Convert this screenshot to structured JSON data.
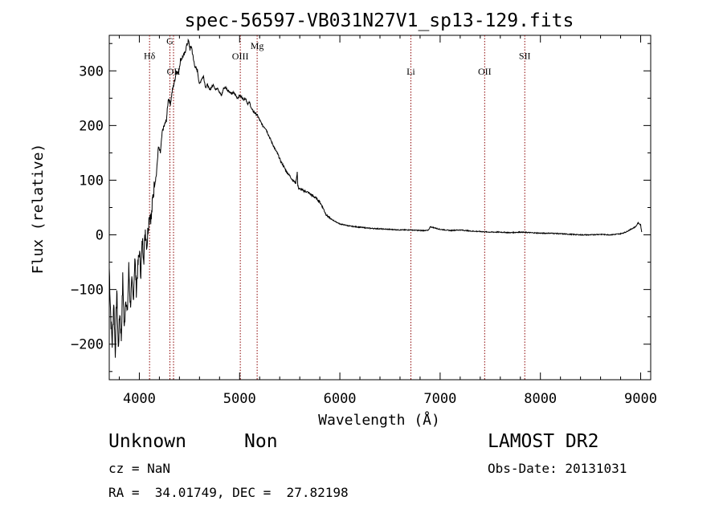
{
  "chart_data": {
    "type": "line",
    "title": "spec-56597-VB031N27V1_sp13-129.fits",
    "xlabel": "Wavelength (Å)",
    "ylabel": "Flux (relative)",
    "xlim": [
      3700,
      9100
    ],
    "ylim": [
      -265,
      365
    ],
    "xticks": [
      4000,
      5000,
      6000,
      7000,
      8000,
      9000
    ],
    "yticks": [
      -200,
      -100,
      0,
      100,
      200,
      300
    ],
    "grid": false,
    "line_color": "#000000",
    "marker_color": "#8b0000",
    "lines": [
      {
        "label": "Hδ",
        "wavelength": 4102,
        "label_flux": 322
      },
      {
        "label": "G",
        "wavelength": 4305,
        "label_flux": 349
      },
      {
        "label": "OII",
        "wavelength": 4341,
        "label_flux": 293
      },
      {
        "label": "OIII",
        "wavelength": 5007,
        "label_flux": 321
      },
      {
        "label": "Mg",
        "wavelength": 5175,
        "label_flux": 340
      },
      {
        "label": "Li",
        "wavelength": 6708,
        "label_flux": 293
      },
      {
        "label": "OII",
        "wavelength": 7444,
        "label_flux": 293
      },
      {
        "label": "SII",
        "wavelength": 7844,
        "label_flux": 322
      }
    ],
    "series": [
      {
        "x": [
          3700,
          3715,
          3730,
          3745,
          3760,
          3775,
          3790,
          3805,
          3820,
          3835,
          3850,
          3865,
          3880,
          3895,
          3910,
          3925,
          3940,
          3955,
          3970,
          3985,
          4000,
          4015,
          4030,
          4045,
          4060,
          4075,
          4090,
          4105,
          4120,
          4135,
          4150,
          4170,
          4190,
          4210,
          4230,
          4250,
          4270,
          4290,
          4310,
          4330,
          4350,
          4370,
          4390,
          4410,
          4430,
          4450,
          4470,
          4490,
          4505,
          4520,
          4540,
          4560,
          4580,
          4600,
          4620,
          4640,
          4660,
          4680,
          4700,
          4720,
          4740,
          4760,
          4780,
          4800,
          4820,
          4840,
          4860,
          4880,
          4900,
          4920,
          4940,
          4960,
          4980,
          5000,
          5020,
          5040,
          5060,
          5080,
          5100,
          5120,
          5140,
          5160,
          5180,
          5200,
          5230,
          5260,
          5290,
          5320,
          5350,
          5380,
          5410,
          5440,
          5470,
          5500,
          5530,
          5560,
          5575,
          5580,
          5590,
          5620,
          5650,
          5680,
          5710,
          5740,
          5770,
          5800,
          5830,
          5860,
          5890,
          5920,
          5950,
          6000,
          6050,
          6100,
          6200,
          6300,
          6400,
          6500,
          6600,
          6700,
          6800,
          6880,
          6890,
          6900,
          7000,
          7100,
          7200,
          7300,
          7400,
          7500,
          7600,
          7700,
          7800,
          7900,
          8000,
          8100,
          8200,
          8300,
          8400,
          8500,
          8600,
          8700,
          8800,
          8850,
          8900,
          8950,
          8975,
          9000,
          9010
        ],
        "y": [
          -60,
          -150,
          -200,
          -120,
          -215,
          -100,
          -210,
          -140,
          -190,
          -80,
          -175,
          -110,
          -150,
          -60,
          -130,
          -90,
          -120,
          -40,
          -100,
          -60,
          -30,
          -70,
          -10,
          -40,
          10,
          -20,
          20,
          40,
          30,
          70,
          90,
          110,
          160,
          150,
          190,
          200,
          210,
          250,
          240,
          265,
          280,
          300,
          295,
          320,
          325,
          330,
          345,
          355,
          340,
          345,
          320,
          305,
          300,
          275,
          285,
          290,
          270,
          275,
          265,
          270,
          275,
          265,
          270,
          260,
          255,
          268,
          270,
          265,
          262,
          258,
          260,
          255,
          250,
          255,
          252,
          248,
          250,
          240,
          242,
          230,
          225,
          222,
          218,
          210,
          200,
          195,
          182,
          170,
          158,
          148,
          135,
          125,
          115,
          108,
          100,
          95,
          115,
          90,
          85,
          82,
          80,
          78,
          74,
          70,
          66,
          60,
          50,
          38,
          32,
          28,
          25,
          20,
          18,
          16,
          14,
          12,
          11,
          10,
          9,
          9,
          8,
          8,
          10,
          15,
          10,
          8,
          9,
          7,
          6,
          5,
          5,
          4,
          5,
          4,
          3,
          3,
          2,
          1,
          0,
          0,
          1,
          0,
          2,
          5,
          10,
          15,
          22,
          18,
          5
        ]
      }
    ]
  },
  "footer": {
    "object_type": "Unknown",
    "object_class": "Non",
    "cz": "cz = NaN",
    "coords": "RA =  34.01749, DEC =  27.82198",
    "survey": "LAMOST DR2",
    "obs_date": "Obs-Date: 20131031"
  }
}
